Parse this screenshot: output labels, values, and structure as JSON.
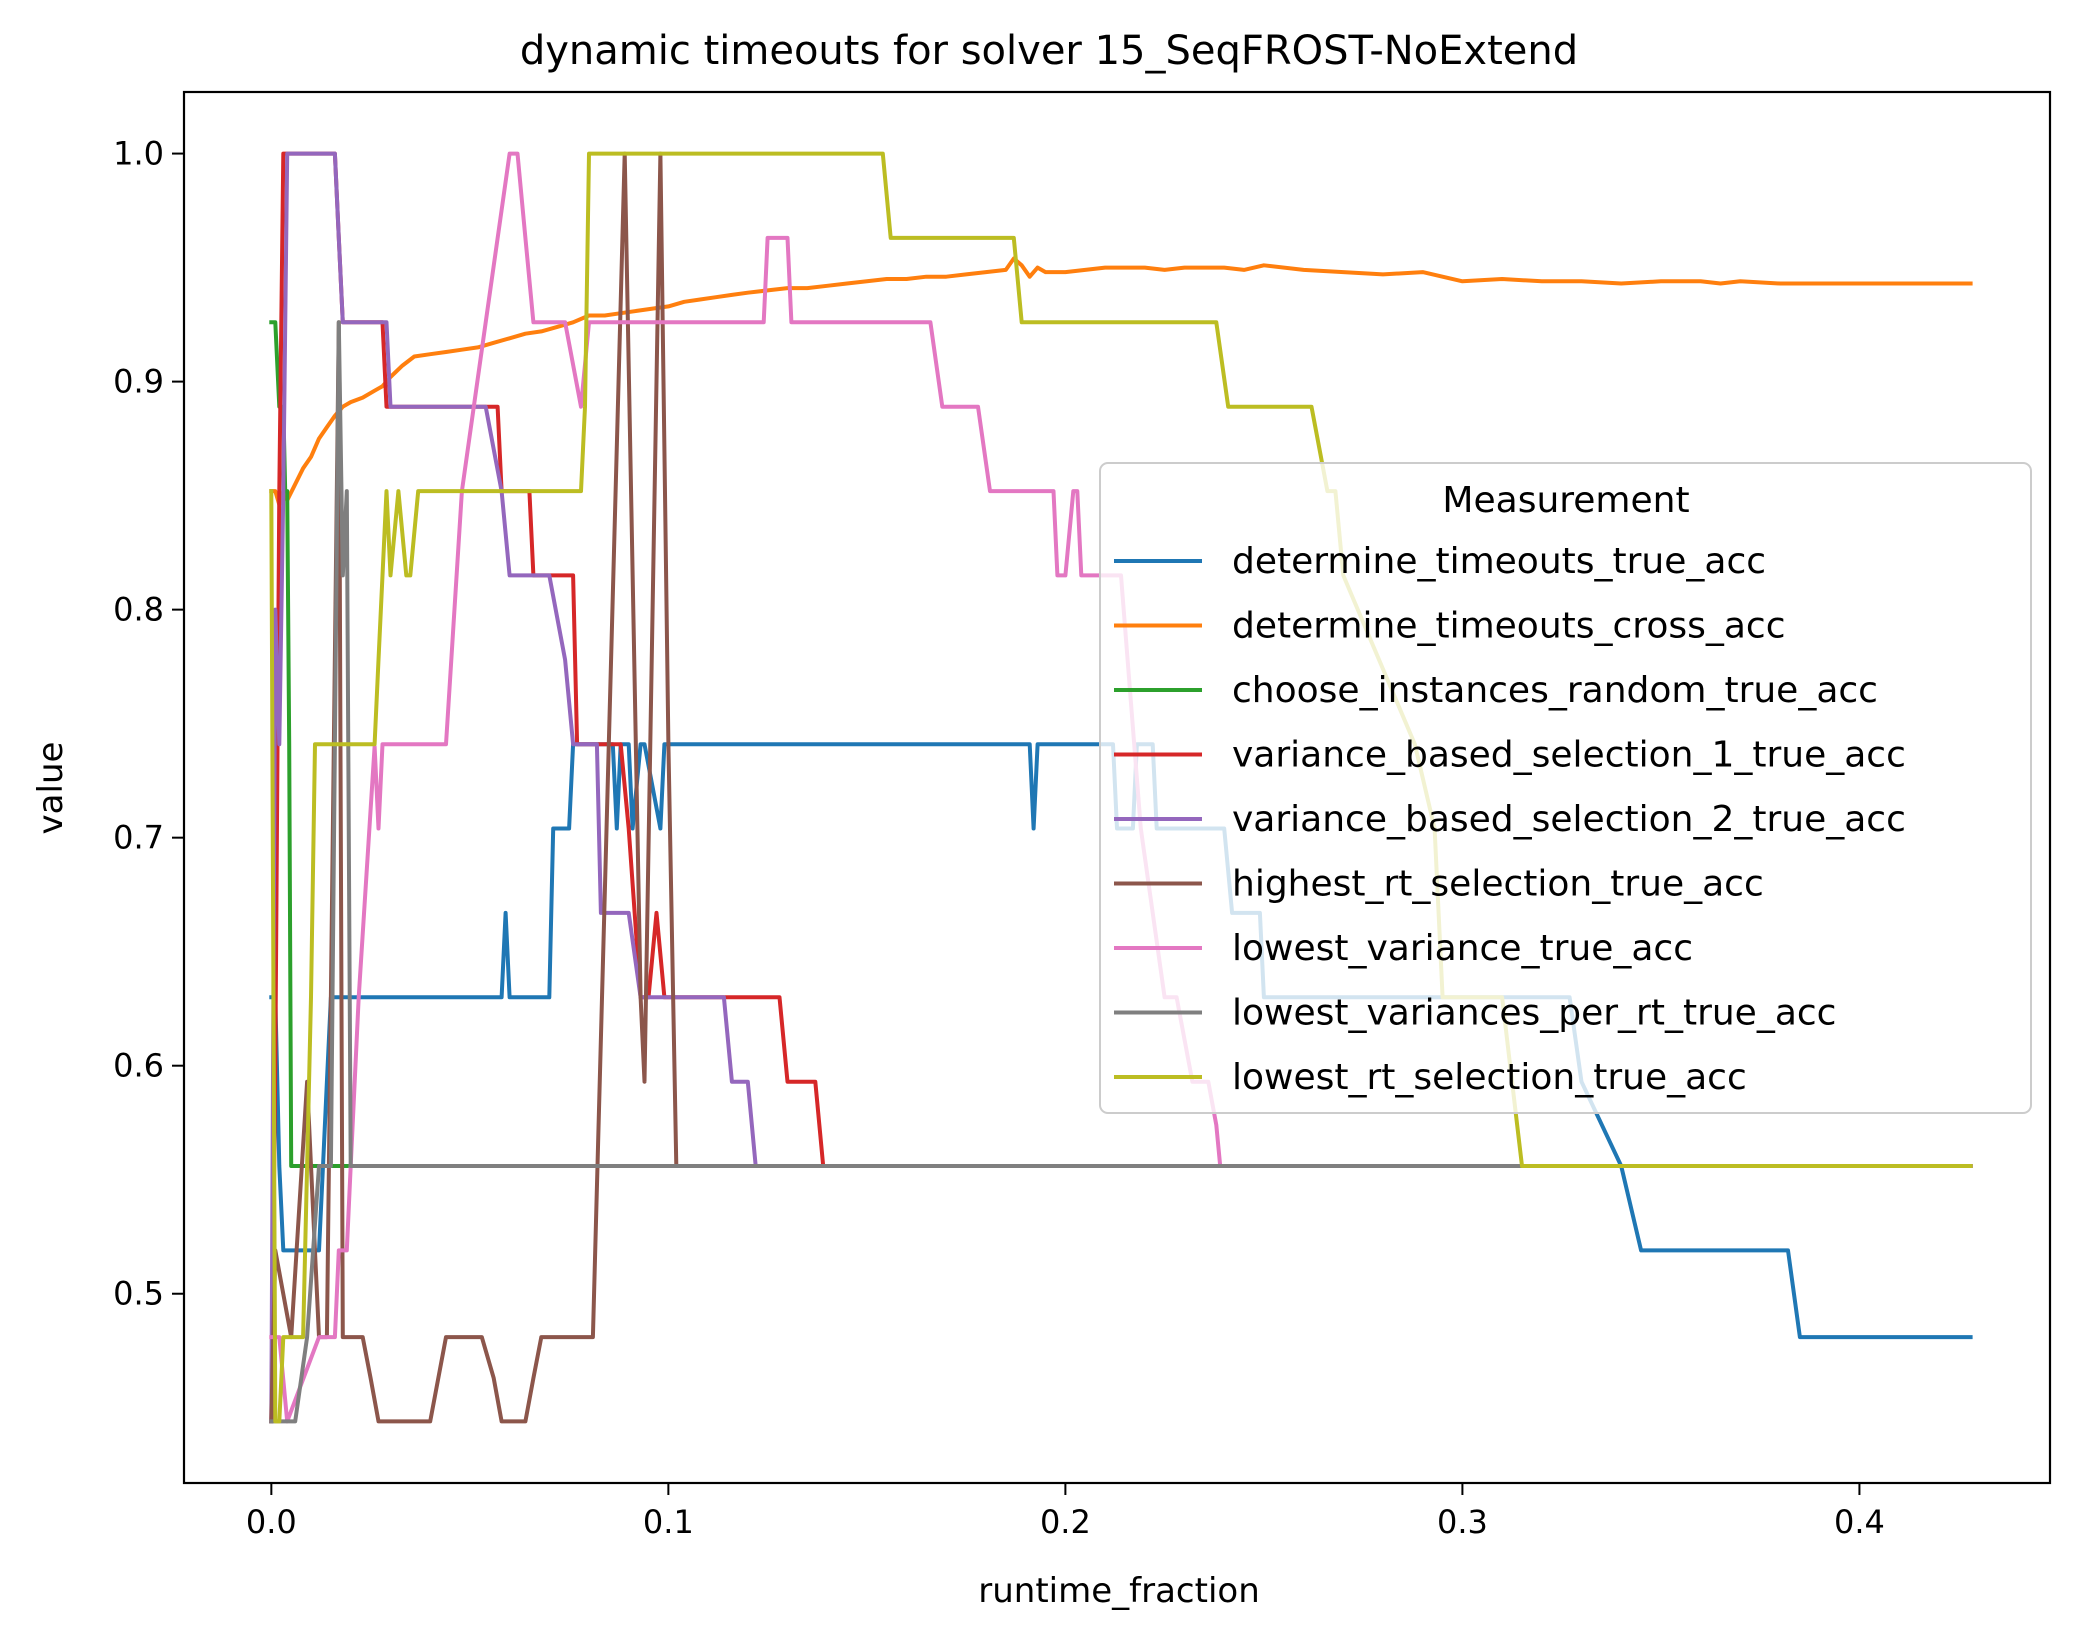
{
  "chart_data": {
    "type": "line",
    "title": "dynamic timeouts for solver 15_SeqFROST-NoExtend",
    "xlabel": "runtime_fraction",
    "ylabel": "value",
    "xlim": [
      -0.022,
      0.448
    ],
    "ylim": [
      0.417,
      1.027
    ],
    "xticks": [
      0.0,
      0.1,
      0.2,
      0.3,
      0.4
    ],
    "xtick_labels": [
      "0.0",
      "0.1",
      "0.2",
      "0.3",
      "0.4"
    ],
    "yticks": [
      0.5,
      0.6,
      0.7,
      0.8,
      0.9,
      1.0
    ],
    "ytick_labels": [
      "0.5",
      "0.6",
      "0.7",
      "0.8",
      "0.9",
      "1.0"
    ],
    "grid": false,
    "legend": {
      "title": "Measurement",
      "placement": "center-right"
    },
    "series": [
      {
        "name": "determine_timeouts_true_acc",
        "color": "#1f77b4",
        "x": [
          0.0,
          0.001,
          0.002,
          0.003,
          0.004,
          0.012,
          0.013,
          0.014,
          0.015,
          0.058,
          0.059,
          0.06,
          0.061,
          0.07,
          0.071,
          0.075,
          0.076,
          0.086,
          0.087,
          0.088,
          0.09,
          0.091,
          0.093,
          0.094,
          0.098,
          0.099,
          0.19,
          0.191,
          0.192,
          0.193,
          0.212,
          0.213,
          0.217,
          0.218,
          0.222,
          0.223,
          0.226,
          0.227,
          0.24,
          0.242,
          0.249,
          0.25,
          0.327,
          0.33,
          0.34,
          0.345,
          0.377,
          0.382,
          0.385,
          0.428
        ],
        "y": [
          0.63,
          0.63,
          0.556,
          0.519,
          0.519,
          0.519,
          0.556,
          0.593,
          0.63,
          0.63,
          0.667,
          0.63,
          0.63,
          0.63,
          0.704,
          0.704,
          0.741,
          0.741,
          0.704,
          0.741,
          0.741,
          0.704,
          0.741,
          0.741,
          0.704,
          0.741,
          0.741,
          0.741,
          0.704,
          0.741,
          0.741,
          0.704,
          0.704,
          0.741,
          0.741,
          0.704,
          0.704,
          0.704,
          0.704,
          0.667,
          0.667,
          0.63,
          0.63,
          0.593,
          0.556,
          0.519,
          0.519,
          0.519,
          0.481,
          0.481
        ]
      },
      {
        "name": "determine_timeouts_cross_acc",
        "color": "#ff7f0e",
        "x": [
          0.0,
          0.001,
          0.002,
          0.003,
          0.004,
          0.006,
          0.008,
          0.01,
          0.012,
          0.014,
          0.016,
          0.018,
          0.02,
          0.023,
          0.026,
          0.028,
          0.03,
          0.033,
          0.036,
          0.04,
          0.044,
          0.048,
          0.052,
          0.056,
          0.06,
          0.064,
          0.068,
          0.072,
          0.076,
          0.08,
          0.084,
          0.088,
          0.092,
          0.096,
          0.1,
          0.104,
          0.108,
          0.112,
          0.116,
          0.12,
          0.125,
          0.13,
          0.135,
          0.14,
          0.145,
          0.15,
          0.155,
          0.16,
          0.165,
          0.17,
          0.175,
          0.18,
          0.185,
          0.187,
          0.189,
          0.191,
          0.193,
          0.195,
          0.2,
          0.205,
          0.21,
          0.215,
          0.22,
          0.225,
          0.23,
          0.235,
          0.24,
          0.245,
          0.25,
          0.26,
          0.27,
          0.28,
          0.29,
          0.3,
          0.31,
          0.32,
          0.33,
          0.34,
          0.35,
          0.36,
          0.365,
          0.37,
          0.38,
          0.4,
          0.428
        ],
        "y": [
          0.852,
          0.852,
          0.846,
          0.852,
          0.848,
          0.855,
          0.862,
          0.867,
          0.875,
          0.88,
          0.885,
          0.889,
          0.891,
          0.893,
          0.896,
          0.898,
          0.902,
          0.907,
          0.911,
          0.912,
          0.913,
          0.914,
          0.915,
          0.917,
          0.919,
          0.921,
          0.922,
          0.924,
          0.926,
          0.929,
          0.929,
          0.93,
          0.931,
          0.932,
          0.933,
          0.935,
          0.936,
          0.937,
          0.938,
          0.939,
          0.94,
          0.941,
          0.941,
          0.942,
          0.943,
          0.944,
          0.945,
          0.945,
          0.946,
          0.946,
          0.947,
          0.948,
          0.949,
          0.954,
          0.951,
          0.946,
          0.95,
          0.948,
          0.948,
          0.949,
          0.95,
          0.95,
          0.95,
          0.949,
          0.95,
          0.95,
          0.95,
          0.949,
          0.951,
          0.949,
          0.948,
          0.947,
          0.948,
          0.944,
          0.945,
          0.944,
          0.944,
          0.943,
          0.944,
          0.944,
          0.943,
          0.944,
          0.943,
          0.943,
          0.943
        ]
      },
      {
        "name": "choose_instances_random_true_acc",
        "color": "#2ca02c",
        "x": [
          0.0,
          0.001,
          0.002,
          0.003,
          0.0035,
          0.004,
          0.0045,
          0.005,
          0.428
        ],
        "y": [
          0.926,
          0.926,
          0.889,
          0.889,
          0.852,
          0.852,
          0.741,
          0.556,
          0.556
        ]
      },
      {
        "name": "variance_based_selection_1_true_acc",
        "color": "#d62728",
        "x": [
          0.0,
          0.001,
          0.002,
          0.003,
          0.016,
          0.017,
          0.018,
          0.028,
          0.029,
          0.057,
          0.058,
          0.06,
          0.065,
          0.066,
          0.072,
          0.076,
          0.077,
          0.088,
          0.09,
          0.093,
          0.095,
          0.097,
          0.099,
          0.1,
          0.11,
          0.128,
          0.13,
          0.137,
          0.139,
          0.428
        ],
        "y": [
          0.444,
          0.6,
          0.852,
          1.0,
          1.0,
          0.963,
          0.926,
          0.926,
          0.889,
          0.889,
          0.852,
          0.852,
          0.852,
          0.815,
          0.815,
          0.815,
          0.741,
          0.741,
          0.704,
          0.63,
          0.63,
          0.667,
          0.63,
          0.63,
          0.63,
          0.63,
          0.593,
          0.593,
          0.556,
          0.556
        ]
      },
      {
        "name": "variance_based_selection_2_true_acc",
        "color": "#9467bd",
        "x": [
          0.0,
          0.001,
          0.002,
          0.003,
          0.004,
          0.016,
          0.017,
          0.018,
          0.029,
          0.03,
          0.054,
          0.058,
          0.06,
          0.07,
          0.074,
          0.076,
          0.082,
          0.083,
          0.09,
          0.093,
          0.095,
          0.114,
          0.116,
          0.12,
          0.122,
          0.428
        ],
        "y": [
          0.444,
          0.8,
          0.741,
          0.852,
          1.0,
          1.0,
          0.963,
          0.926,
          0.926,
          0.889,
          0.889,
          0.852,
          0.815,
          0.815,
          0.778,
          0.741,
          0.741,
          0.667,
          0.667,
          0.63,
          0.63,
          0.63,
          0.593,
          0.593,
          0.556,
          0.556
        ]
      },
      {
        "name": "highest_rt_selection_true_acc",
        "color": "#8c564b",
        "x": [
          0.0,
          0.001,
          0.005,
          0.009,
          0.01,
          0.012,
          0.014,
          0.017,
          0.018,
          0.021,
          0.023,
          0.025,
          0.027,
          0.03,
          0.035,
          0.04,
          0.044,
          0.048,
          0.053,
          0.056,
          0.058,
          0.06,
          0.064,
          0.066,
          0.068,
          0.076,
          0.081,
          0.085,
          0.089,
          0.093,
          0.094,
          0.098,
          0.1,
          0.102,
          0.428
        ],
        "y": [
          0.444,
          0.519,
          0.481,
          0.593,
          0.556,
          0.481,
          0.481,
          0.926,
          0.481,
          0.481,
          0.481,
          0.463,
          0.444,
          0.444,
          0.444,
          0.444,
          0.481,
          0.481,
          0.481,
          0.463,
          0.444,
          0.444,
          0.444,
          0.463,
          0.481,
          0.481,
          0.481,
          0.741,
          1.0,
          0.63,
          0.593,
          1.0,
          0.741,
          0.556,
          0.556
        ]
      },
      {
        "name": "lowest_variance_true_acc",
        "color": "#e377c2",
        "x": [
          0.0,
          0.002,
          0.004,
          0.012,
          0.015,
          0.016,
          0.017,
          0.019,
          0.02,
          0.022,
          0.026,
          0.027,
          0.028,
          0.029,
          0.03,
          0.044,
          0.048,
          0.054,
          0.06,
          0.062,
          0.064,
          0.066,
          0.074,
          0.078,
          0.08,
          0.082,
          0.084,
          0.1,
          0.124,
          0.125,
          0.13,
          0.131,
          0.136,
          0.166,
          0.169,
          0.178,
          0.181,
          0.197,
          0.198,
          0.2,
          0.202,
          0.203,
          0.204,
          0.205,
          0.206,
          0.214,
          0.219,
          0.222,
          0.225,
          0.228,
          0.232,
          0.236,
          0.238,
          0.239,
          0.428
        ],
        "y": [
          0.481,
          0.481,
          0.444,
          0.481,
          0.481,
          0.481,
          0.519,
          0.519,
          0.556,
          0.63,
          0.74,
          0.704,
          0.741,
          0.741,
          0.741,
          0.741,
          0.852,
          0.926,
          1.0,
          1.0,
          0.963,
          0.926,
          0.926,
          0.889,
          0.926,
          0.926,
          0.926,
          0.926,
          0.926,
          0.963,
          0.963,
          0.926,
          0.926,
          0.926,
          0.889,
          0.889,
          0.852,
          0.852,
          0.815,
          0.815,
          0.852,
          0.852,
          0.815,
          0.815,
          0.815,
          0.815,
          0.704,
          0.667,
          0.63,
          0.63,
          0.593,
          0.593,
          0.574,
          0.556,
          0.556
        ]
      },
      {
        "name": "lowest_variances_per_rt_true_acc",
        "color": "#7f7f7f",
        "x": [
          0.0,
          0.003,
          0.006,
          0.009,
          0.012,
          0.014,
          0.015,
          0.016,
          0.017,
          0.018,
          0.019,
          0.02,
          0.021,
          0.428
        ],
        "y": [
          0.444,
          0.444,
          0.444,
          0.481,
          0.556,
          0.556,
          0.556,
          0.741,
          0.926,
          0.815,
          0.852,
          0.556,
          0.556,
          0.556
        ]
      },
      {
        "name": "lowest_rt_selection_true_acc",
        "color": "#bcbd22",
        "x": [
          0.0,
          0.001,
          0.002,
          0.003,
          0.006,
          0.008,
          0.009,
          0.01,
          0.011,
          0.016,
          0.026,
          0.027,
          0.028,
          0.029,
          0.03,
          0.032,
          0.034,
          0.035,
          0.037,
          0.038,
          0.039,
          0.078,
          0.079,
          0.08,
          0.082,
          0.083,
          0.154,
          0.156,
          0.187,
          0.189,
          0.19,
          0.191,
          0.238,
          0.241,
          0.262,
          0.266,
          0.268,
          0.27,
          0.288,
          0.293,
          0.295,
          0.31,
          0.315,
          0.428
        ],
        "y": [
          0.852,
          0.444,
          0.444,
          0.481,
          0.481,
          0.481,
          0.556,
          0.63,
          0.741,
          0.741,
          0.741,
          0.778,
          0.815,
          0.852,
          0.815,
          0.852,
          0.815,
          0.815,
          0.852,
          0.852,
          0.852,
          0.852,
          0.889,
          1.0,
          1.0,
          1.0,
          1.0,
          0.963,
          0.963,
          0.926,
          0.926,
          0.926,
          0.926,
          0.889,
          0.889,
          0.852,
          0.852,
          0.815,
          0.741,
          0.704,
          0.63,
          0.63,
          0.556,
          0.556
        ]
      }
    ]
  }
}
